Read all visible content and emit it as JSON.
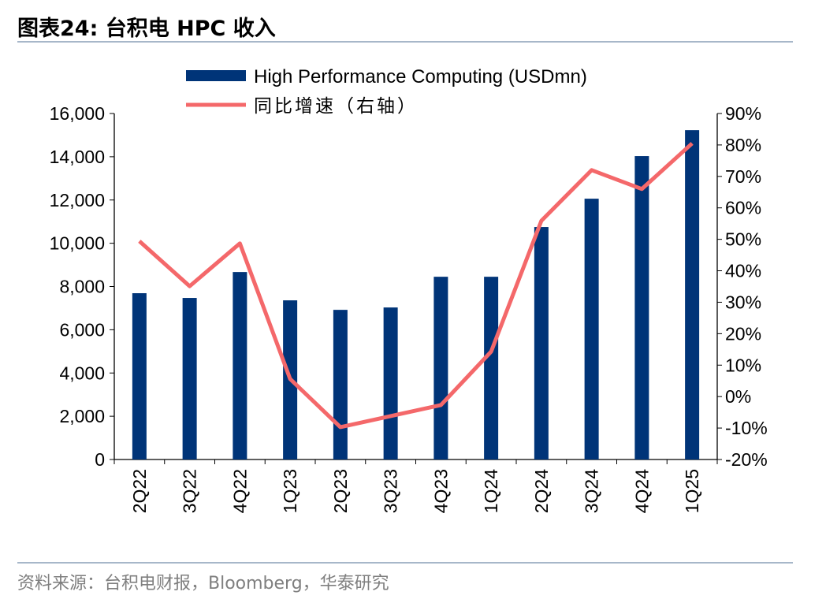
{
  "title": "图表24:  台积电 HPC 收入",
  "source": "资料来源：台积电财报，Bloomberg，华泰研究",
  "colors": {
    "bar": "#003478",
    "line": "#f4686a"
  },
  "chart_data": {
    "type": "bar+line",
    "categories": [
      "2Q22",
      "3Q22",
      "4Q22",
      "1Q23",
      "2Q23",
      "3Q23",
      "4Q23",
      "1Q24",
      "2Q24",
      "3Q24",
      "4Q24",
      "1Q25"
    ],
    "series": [
      {
        "name": "High Performance Computing (USDmn)",
        "type": "bar",
        "axis": "left",
        "values": [
          7690,
          7470,
          8670,
          7360,
          6920,
          7030,
          8450,
          8450,
          10750,
          12060,
          14030,
          15230
        ]
      },
      {
        "name": "同比增速（右轴）",
        "type": "line",
        "axis": "right",
        "values": [
          49.4,
          35.1,
          48.7,
          5.6,
          -9.7,
          -6.2,
          -2.7,
          14.3,
          55.9,
          72.0,
          66.0,
          80.5
        ]
      }
    ],
    "left_axis": {
      "ylim": [
        0,
        16000
      ],
      "ticks": [
        "0",
        "2,000",
        "4,000",
        "6,000",
        "8,000",
        "10,000",
        "12,000",
        "14,000",
        "16,000"
      ]
    },
    "right_axis": {
      "ylim": [
        -20,
        90
      ],
      "ticks": [
        "-20%",
        "-10%",
        "0%",
        "10%",
        "20%",
        "30%",
        "40%",
        "50%",
        "60%",
        "70%",
        "80%",
        "90%"
      ]
    },
    "legend": "top",
    "grid": false
  }
}
